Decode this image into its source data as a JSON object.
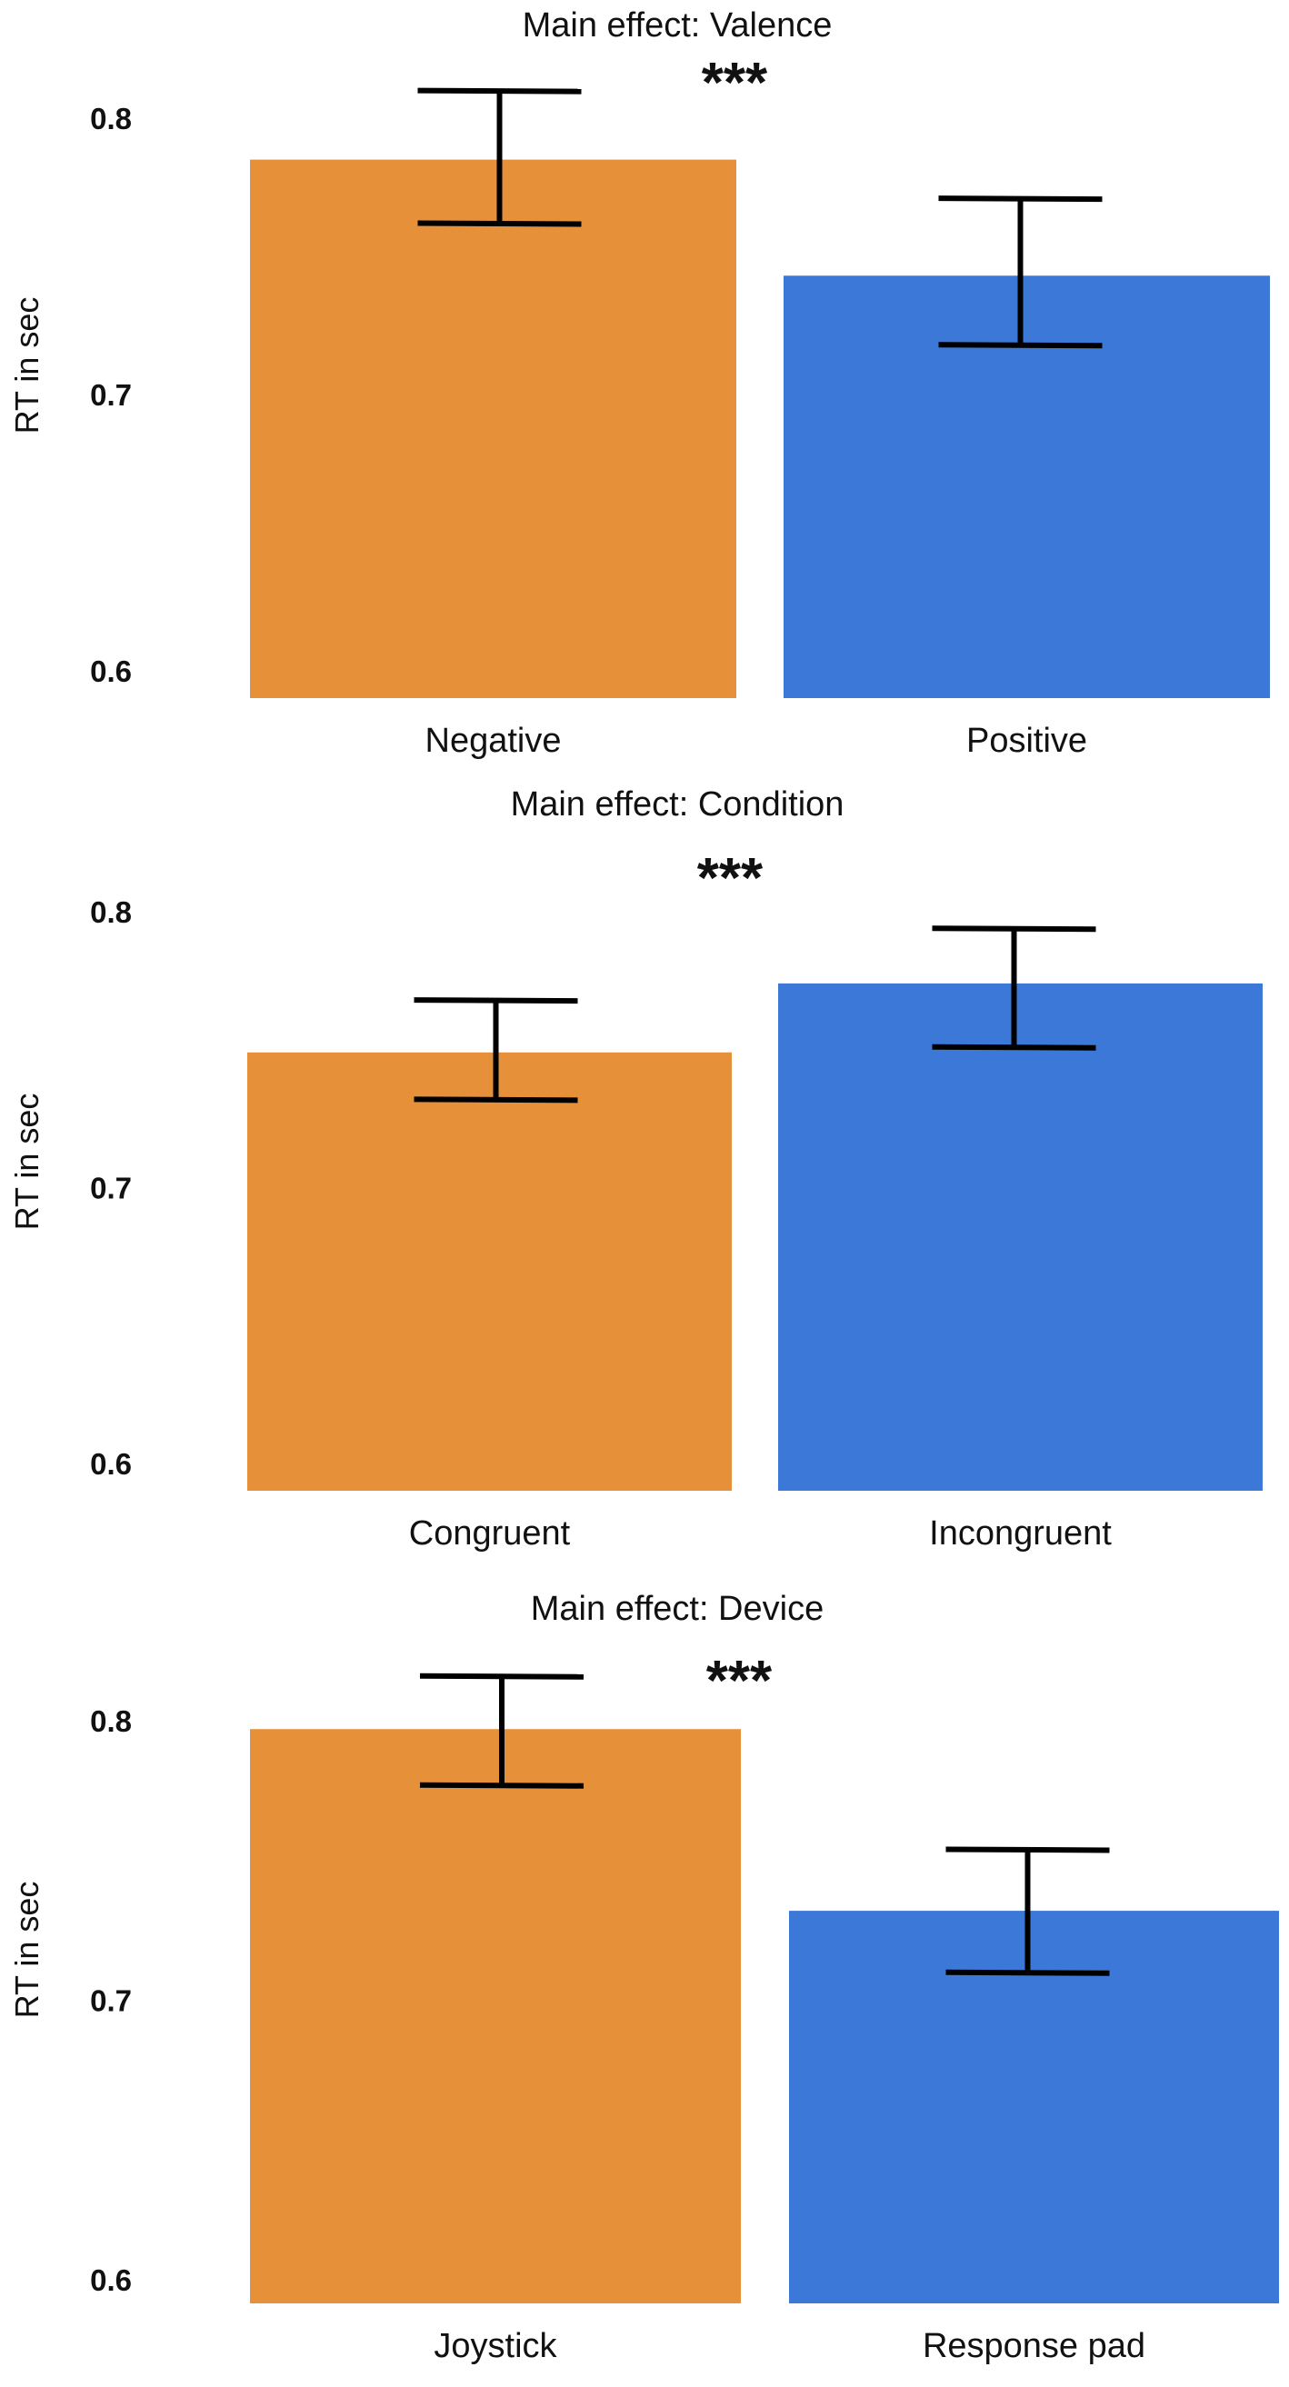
{
  "colors": {
    "orange": "#E6913A",
    "blue": "#3C78D8"
  },
  "chart_data": [
    {
      "type": "bar",
      "title": "Main effect: Valence",
      "ylabel": "RT in sec",
      "ylim": [
        0.6,
        0.8
      ],
      "yticks": [
        "0.8",
        "0.7",
        "0.6"
      ],
      "categories": [
        "Negative",
        "Positive"
      ],
      "values": [
        0.785,
        0.743
      ],
      "error_low": [
        0.762,
        0.718
      ],
      "error_high": [
        0.81,
        0.771
      ],
      "significance": "***"
    },
    {
      "type": "bar",
      "title": "Main effect: Condition",
      "ylabel": "RT in sec",
      "ylim": [
        0.6,
        0.8
      ],
      "yticks": [
        "0.8",
        "0.7",
        "0.6"
      ],
      "categories": [
        "Congruent",
        "Incongruent"
      ],
      "values": [
        0.749,
        0.774
      ],
      "error_low": [
        0.732,
        0.751
      ],
      "error_high": [
        0.768,
        0.794
      ],
      "significance": "***"
    },
    {
      "type": "bar",
      "title": "Main effect: Device",
      "ylabel": "RT in sec",
      "ylim": [
        0.6,
        0.8
      ],
      "yticks": [
        "0.8",
        "0.7",
        "0.6"
      ],
      "categories": [
        "Joystick",
        "Response pad"
      ],
      "values": [
        0.797,
        0.732
      ],
      "error_low": [
        0.777,
        0.71
      ],
      "error_high": [
        0.816,
        0.754
      ],
      "significance": "***"
    }
  ]
}
